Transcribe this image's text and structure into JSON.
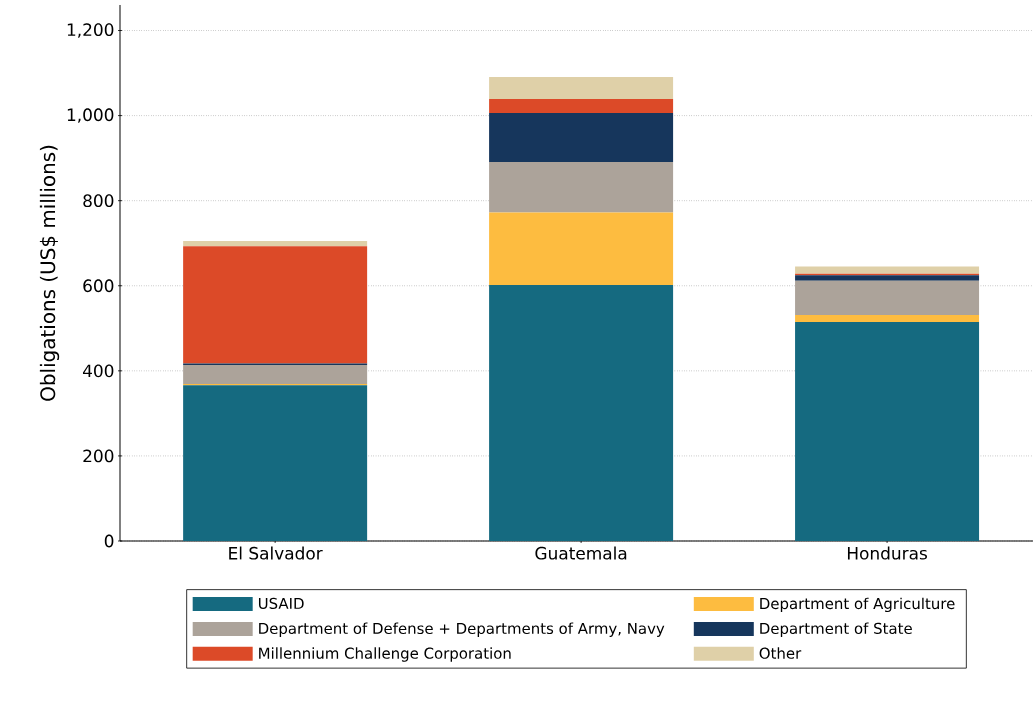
{
  "chart_data": {
    "type": "bar",
    "stacked": true,
    "ylabel": "Obligations (US$ millions)",
    "categories": [
      "El Salvador",
      "Guatemala",
      "Honduras"
    ],
    "series": [
      {
        "name": "USAID",
        "color": "#156a80",
        "values": [
          366,
          602,
          515
        ]
      },
      {
        "name": "Department of Agriculture",
        "color": "#fdbc40",
        "values": [
          3,
          170,
          16
        ]
      },
      {
        "name": "Department of Defense + Departments of Army, Navy",
        "color": "#aca39a",
        "values": [
          45,
          119,
          81
        ]
      },
      {
        "name": "Department of State",
        "color": "#16365c",
        "values": [
          3,
          115,
          13
        ]
      },
      {
        "name": "Millennium Challenge Corporation",
        "color": "#dc4a28",
        "values": [
          276,
          33,
          3
        ]
      },
      {
        "name": "Other",
        "color": "#dfd0a8",
        "values": [
          12,
          52,
          17
        ]
      }
    ],
    "ylim": [
      0,
      1260
    ],
    "yticks": [
      0,
      200,
      400,
      600,
      800,
      {
        "value": 1000,
        "label": "1,000"
      },
      {
        "value": 1200,
        "label": "1,200"
      }
    ],
    "grid": "y",
    "legend": "bottom"
  }
}
